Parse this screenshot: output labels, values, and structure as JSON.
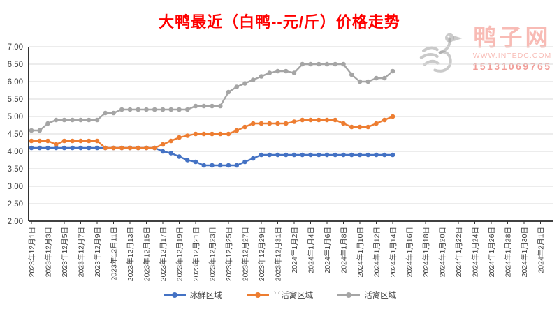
{
  "title": "大鸭最近（白鸭--元/斤）价格走势",
  "watermark": {
    "site_name": "鸭子网",
    "website": "WWW.INTEDC.COM",
    "phone": "15131069765"
  },
  "colors": {
    "title": "#FF0000",
    "axis": "#000000",
    "grid": "#D9D9D9",
    "tick_label": "#404040",
    "watermark_red": "rgba(236,76,60,0.38)",
    "watermark_phone_red": "rgba(230,60,50,0.50)",
    "watermark_gray": "rgba(150,150,150,0.50)"
  },
  "chart_data": {
    "type": "line",
    "title": "大鸭最近（白鸭--元/斤）价格走势",
    "xlabel": "",
    "ylabel": "",
    "ylim": [
      2.0,
      7.0
    ],
    "grid": "horizontal",
    "legend_position": "bottom",
    "yticks": [
      7.0,
      6.5,
      6.0,
      5.5,
      5.0,
      4.5,
      4.0,
      3.5,
      3.0,
      2.5,
      2.0
    ],
    "ytick_labels": [
      "7.00",
      "6.50",
      "6.00",
      "5.50",
      "5.00",
      "4.50",
      "4.00",
      "3.50",
      "3.00",
      "2.50",
      "2.00"
    ],
    "x_axis_tick_labels": [
      "2023年12月1日",
      "2023年12月3日",
      "2023年12月5日",
      "2023年12月7日",
      "2023年12月9日",
      "2023年12月11日",
      "2023年12月13日",
      "2023年12月15日",
      "2023年12月17日",
      "2023年12月19日",
      "2023年12月21日",
      "2023年12月23日",
      "2023年12月25日",
      "2023年12月27日",
      "2023年12月29日",
      "2023年12月31日",
      "2024年1月2日",
      "2024年1月4日",
      "2024年1月6日",
      "2024年1月8日",
      "2024年1月10日",
      "2024年1月12日",
      "2024年1月14日",
      "2024年1月16日",
      "2024年1月18日",
      "2024年1月20日",
      "2024年1月22日",
      "2024年1月24日",
      "2024年1月26日",
      "2024年1月28日",
      "2024年1月30日",
      "2024年2月1日"
    ],
    "x_dates": [
      "2023-12-01",
      "2023-12-02",
      "2023-12-03",
      "2023-12-04",
      "2023-12-05",
      "2023-12-06",
      "2023-12-07",
      "2023-12-08",
      "2023-12-09",
      "2023-12-10",
      "2023-12-11",
      "2023-12-12",
      "2023-12-13",
      "2023-12-14",
      "2023-12-15",
      "2023-12-16",
      "2023-12-17",
      "2023-12-18",
      "2023-12-19",
      "2023-12-20",
      "2023-12-21",
      "2023-12-22",
      "2023-12-23",
      "2023-12-24",
      "2023-12-25",
      "2023-12-26",
      "2023-12-27",
      "2023-12-28",
      "2023-12-29",
      "2023-12-30",
      "2023-12-31",
      "2024-01-01",
      "2024-01-02",
      "2024-01-03",
      "2024-01-04",
      "2024-01-05",
      "2024-01-06",
      "2024-01-07",
      "2024-01-08",
      "2024-01-09",
      "2024-01-10",
      "2024-01-11",
      "2024-01-12",
      "2024-01-13",
      "2024-01-14"
    ],
    "series": [
      {
        "name": "冰鲜区域",
        "color": "#4472C4",
        "values": [
          4.1,
          4.1,
          4.1,
          4.1,
          4.1,
          4.1,
          4.1,
          4.1,
          4.1,
          4.1,
          4.1,
          4.1,
          4.1,
          4.1,
          4.1,
          4.1,
          4.0,
          3.95,
          3.85,
          3.75,
          3.7,
          3.6,
          3.6,
          3.6,
          3.6,
          3.6,
          3.7,
          3.8,
          3.9,
          3.9,
          3.9,
          3.9,
          3.9,
          3.9,
          3.9,
          3.9,
          3.9,
          3.9,
          3.9,
          3.9,
          3.9,
          3.9,
          3.9,
          3.9,
          3.9
        ]
      },
      {
        "name": "半活禽区域",
        "color": "#ED7D31",
        "values": [
          4.3,
          4.3,
          4.3,
          4.2,
          4.3,
          4.3,
          4.3,
          4.3,
          4.3,
          4.1,
          4.1,
          4.1,
          4.1,
          4.1,
          4.1,
          4.1,
          4.2,
          4.3,
          4.4,
          4.45,
          4.5,
          4.5,
          4.5,
          4.5,
          4.5,
          4.6,
          4.7,
          4.8,
          4.8,
          4.8,
          4.8,
          4.8,
          4.85,
          4.9,
          4.9,
          4.9,
          4.9,
          4.9,
          4.8,
          4.7,
          4.7,
          4.7,
          4.8,
          4.9,
          5.0
        ]
      },
      {
        "name": "活禽区域",
        "color": "#A5A5A5",
        "values": [
          4.6,
          4.6,
          4.8,
          4.9,
          4.9,
          4.9,
          4.9,
          4.9,
          4.9,
          5.1,
          5.1,
          5.2,
          5.2,
          5.2,
          5.2,
          5.2,
          5.2,
          5.2,
          5.2,
          5.2,
          5.3,
          5.3,
          5.3,
          5.3,
          5.7,
          5.85,
          5.95,
          6.05,
          6.15,
          6.25,
          6.3,
          6.3,
          6.25,
          6.5,
          6.5,
          6.5,
          6.5,
          6.5,
          6.5,
          6.2,
          6.0,
          6.0,
          6.1,
          6.1,
          6.3
        ]
      }
    ]
  }
}
